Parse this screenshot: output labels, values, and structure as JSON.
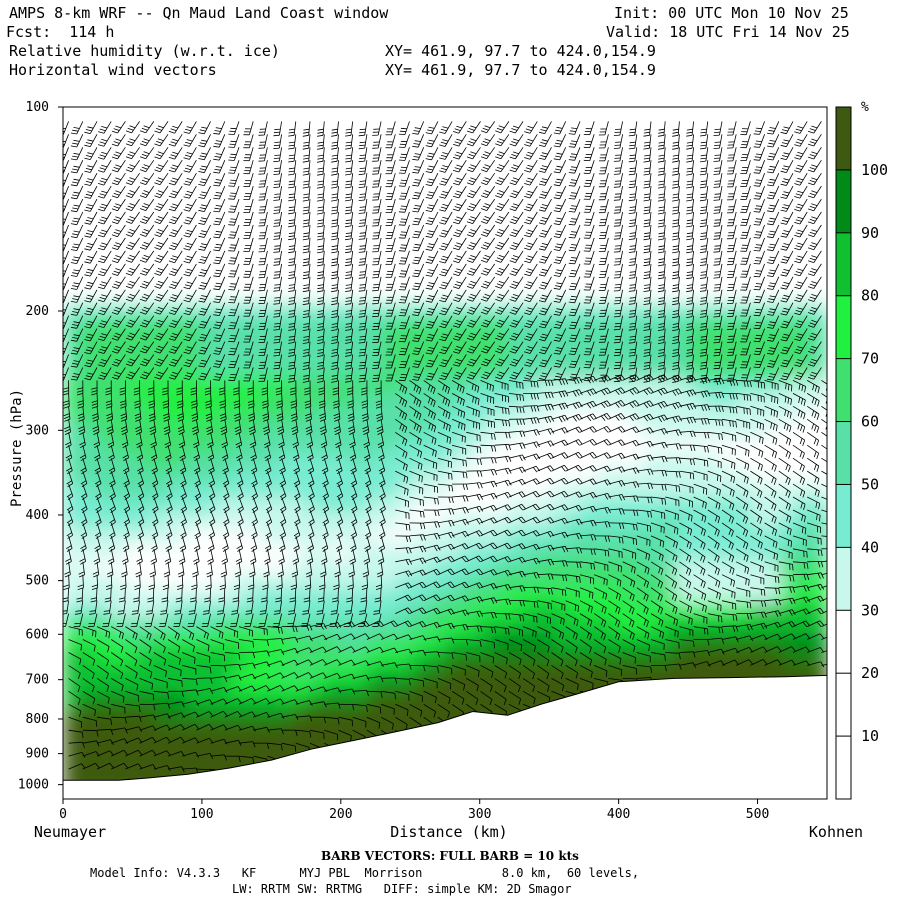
{
  "header": {
    "title": "AMPS 8-km WRF -- Qn Maud Land Coast window",
    "init": "Init: 00 UTC Mon 10 Nov 25",
    "fcst": "Fcst:  114 h",
    "valid": "Valid: 18 UTC Fri 14 Nov 25",
    "field1": "Relative humidity (w.r.t. ice)",
    "field2": "Horizontal wind vectors",
    "xy1": "XY= 461.9, 97.7 to 424.0,154.9",
    "xy2": "XY= 461.9, 97.7 to 424.0,154.9"
  },
  "chart_data": {
    "type": "heatmap",
    "title": "Relative humidity (w.r.t. ice) cross-section",
    "xlabel": "Distance (km)",
    "ylabel": "Pressure (hPa)",
    "x_ticks": [
      0,
      100,
      200,
      300,
      400,
      500
    ],
    "y_ticks": [
      100,
      200,
      300,
      400,
      500,
      600,
      700,
      800,
      900,
      1000
    ],
    "xlim": [
      0,
      550
    ],
    "ylim": [
      1050,
      100
    ],
    "y_scale": "log",
    "left_end_label": "Neumayer",
    "right_end_label": "Kohnen",
    "colorbar": {
      "unit": "%",
      "ticks": [
        10,
        20,
        30,
        40,
        50,
        60,
        70,
        80,
        90,
        100
      ],
      "levels": [
        {
          "lo": 0,
          "hi": 30,
          "color": "#ffffff"
        },
        {
          "lo": 30,
          "hi": 40,
          "color": "#c8f8ec"
        },
        {
          "lo": 40,
          "hi": 50,
          "color": "#78ecd2"
        },
        {
          "lo": 50,
          "hi": 60,
          "color": "#58e0a8"
        },
        {
          "lo": 60,
          "hi": 70,
          "color": "#40e070"
        },
        {
          "lo": 70,
          "hi": 80,
          "color": "#20f040"
        },
        {
          "lo": 80,
          "hi": 90,
          "color": "#10c030"
        },
        {
          "lo": 90,
          "hi": 100,
          "color": "#008a18"
        },
        {
          "lo": 100,
          "hi": 110,
          "color": "#3e5a10"
        }
      ]
    },
    "terrain_surface_hPa": [
      [
        0,
        985
      ],
      [
        40,
        985
      ],
      [
        60,
        978
      ],
      [
        90,
        965
      ],
      [
        120,
        945
      ],
      [
        150,
        920
      ],
      [
        180,
        885
      ],
      [
        210,
        860
      ],
      [
        240,
        835
      ],
      [
        270,
        810
      ],
      [
        295,
        780
      ],
      [
        320,
        790
      ],
      [
        345,
        760
      ],
      [
        370,
        735
      ],
      [
        400,
        705
      ],
      [
        440,
        697
      ],
      [
        480,
        695
      ],
      [
        520,
        693
      ],
      [
        550,
        690
      ]
    ],
    "rh_regions": [
      {
        "description": "upper dry layer",
        "p_range": [
          100,
          200
        ],
        "rh": 10
      },
      {
        "description": "moist band 200-250 hPa",
        "p_range": [
          200,
          260
        ],
        "rh": 55
      },
      {
        "description": "dry tongue",
        "p_range": [
          330,
          520
        ],
        "x_range": [
          80,
          270
        ],
        "rh": 20
      },
      {
        "description": "very moist lower layer near Neumayer",
        "p_range": [
          580,
          800
        ],
        "x_range": [
          0,
          260
        ],
        "rh": 85
      },
      {
        "description": "saturated near surface at Neumayer",
        "p_range": [
          900,
          985
        ],
        "x_range": [
          0,
          15
        ],
        "rh": 105
      }
    ],
    "barbs": "Horizontal wind vectors shown as barbs on a regular grid"
  },
  "footer": {
    "barb_note": "BARB VECTORS:  FULL BARB = 10 kts",
    "line1": "Model Info: V4.3.3   KF      MYJ PBL  Morrison           8.0 km,  60 levels,",
    "line2": "LW: RRTM SW: RRTMG   DIFF: simple KM: 2D Smagor"
  }
}
